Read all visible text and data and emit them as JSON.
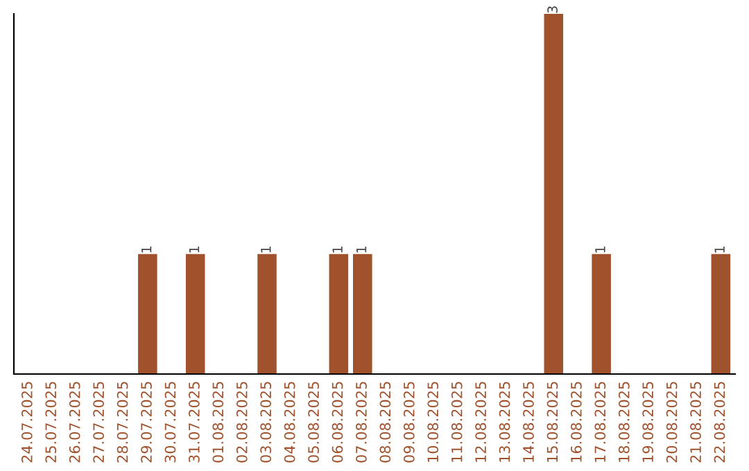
{
  "chart_data": {
    "type": "bar",
    "categories": [
      "24.07.2025",
      "25.07.2025",
      "26.07.2025",
      "27.07.2025",
      "28.07.2025",
      "29.07.2025",
      "30.07.2025",
      "31.07.2025",
      "01.08.2025",
      "02.08.2025",
      "03.08.2025",
      "04.08.2025",
      "05.08.2025",
      "06.08.2025",
      "07.08.2025",
      "08.08.2025",
      "09.08.2025",
      "10.08.2025",
      "11.08.2025",
      "12.08.2025",
      "13.08.2025",
      "14.08.2025",
      "15.08.2025",
      "16.08.2025",
      "17.08.2025",
      "18.08.2025",
      "19.08.2025",
      "20.08.2025",
      "21.08.2025",
      "22.08.2025"
    ],
    "values": [
      0,
      0,
      0,
      0,
      0,
      1,
      0,
      1,
      0,
      0,
      1,
      0,
      0,
      1,
      1,
      0,
      0,
      0,
      0,
      0,
      0,
      0,
      3,
      0,
      1,
      0,
      0,
      0,
      0,
      1
    ],
    "value_labels": [
      null,
      null,
      null,
      null,
      null,
      "1",
      null,
      "1",
      null,
      null,
      "1",
      null,
      null,
      "1",
      "1",
      null,
      null,
      null,
      null,
      null,
      null,
      null,
      "3",
      null,
      "1",
      null,
      null,
      null,
      null,
      "1"
    ],
    "color": "#a0522d",
    "ylim": [
      0,
      3
    ],
    "tick_labels": "x",
    "grid": false,
    "legend": false
  }
}
